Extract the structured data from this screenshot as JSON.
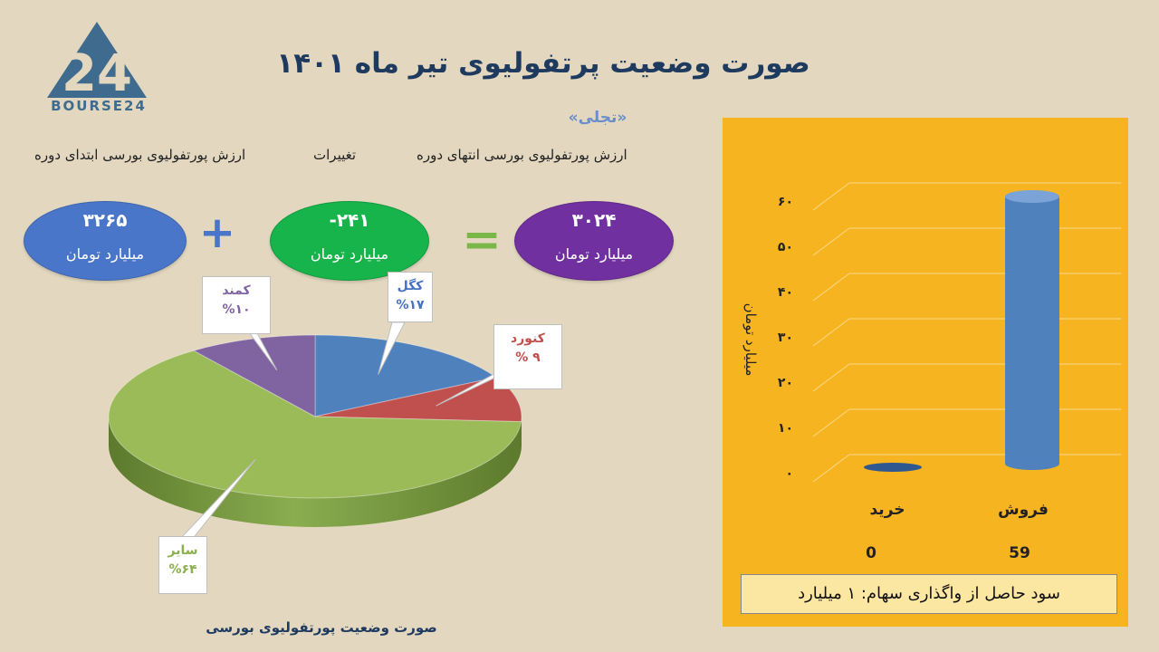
{
  "title": "صورت وضعیت پرتفولیوی تیر ماه ۱۴۰۱",
  "subtitle": "«تجلی»",
  "logo_text": "BOURSE24",
  "headers": {
    "end_value": "ارزش پورتفولیوی بورسی انتهای دوره",
    "changes": "تغییرات",
    "start_value": "ارزش پورتفولیوی بورسی ابتدای دوره"
  },
  "summary": {
    "start": {
      "value": "۳۲۶۵",
      "unit": "میلیارد تومان",
      "color": "#4a76c9"
    },
    "change": {
      "value": "-۲۴۱",
      "unit": "میلیارد تومان",
      "color": "#16b44a"
    },
    "end": {
      "value": "۳۰۲۴",
      "unit": "میلیارد تومان",
      "color": "#7030a0"
    },
    "plus_symbol": "+",
    "equals_symbol": "="
  },
  "chart_data": [
    {
      "type": "pie",
      "title": "صورت وضعیت پورتفولیوی بورسی",
      "slices": [
        {
          "name": "کگل",
          "value": 17,
          "label": "%۱۷",
          "color": "#4f81bd"
        },
        {
          "name": "کنورد",
          "value": 9,
          "label": "% ۹",
          "color": "#c0504d"
        },
        {
          "name": "سایر",
          "value": 64,
          "label": "%۶۴",
          "color": "#9bbb59"
        },
        {
          "name": "کمند",
          "value": 10,
          "label": "%۱۰",
          "color": "#8064a2"
        }
      ]
    },
    {
      "type": "bar",
      "categories": [
        "خرید",
        "فروش"
      ],
      "values": [
        0,
        59
      ],
      "value_labels": [
        "0",
        "59"
      ],
      "ylabel": "میلیارد تومان",
      "ylim": [
        0,
        60
      ],
      "yticks": [
        "۰",
        "۱۰",
        "۲۰",
        "۳۰",
        "۴۰",
        "۵۰",
        "۶۰"
      ],
      "grid": true,
      "bar_color": "#4f81bd"
    }
  ],
  "panel_footer": "سود حاصل از واگذاری سهام: ۱ میلیارد"
}
